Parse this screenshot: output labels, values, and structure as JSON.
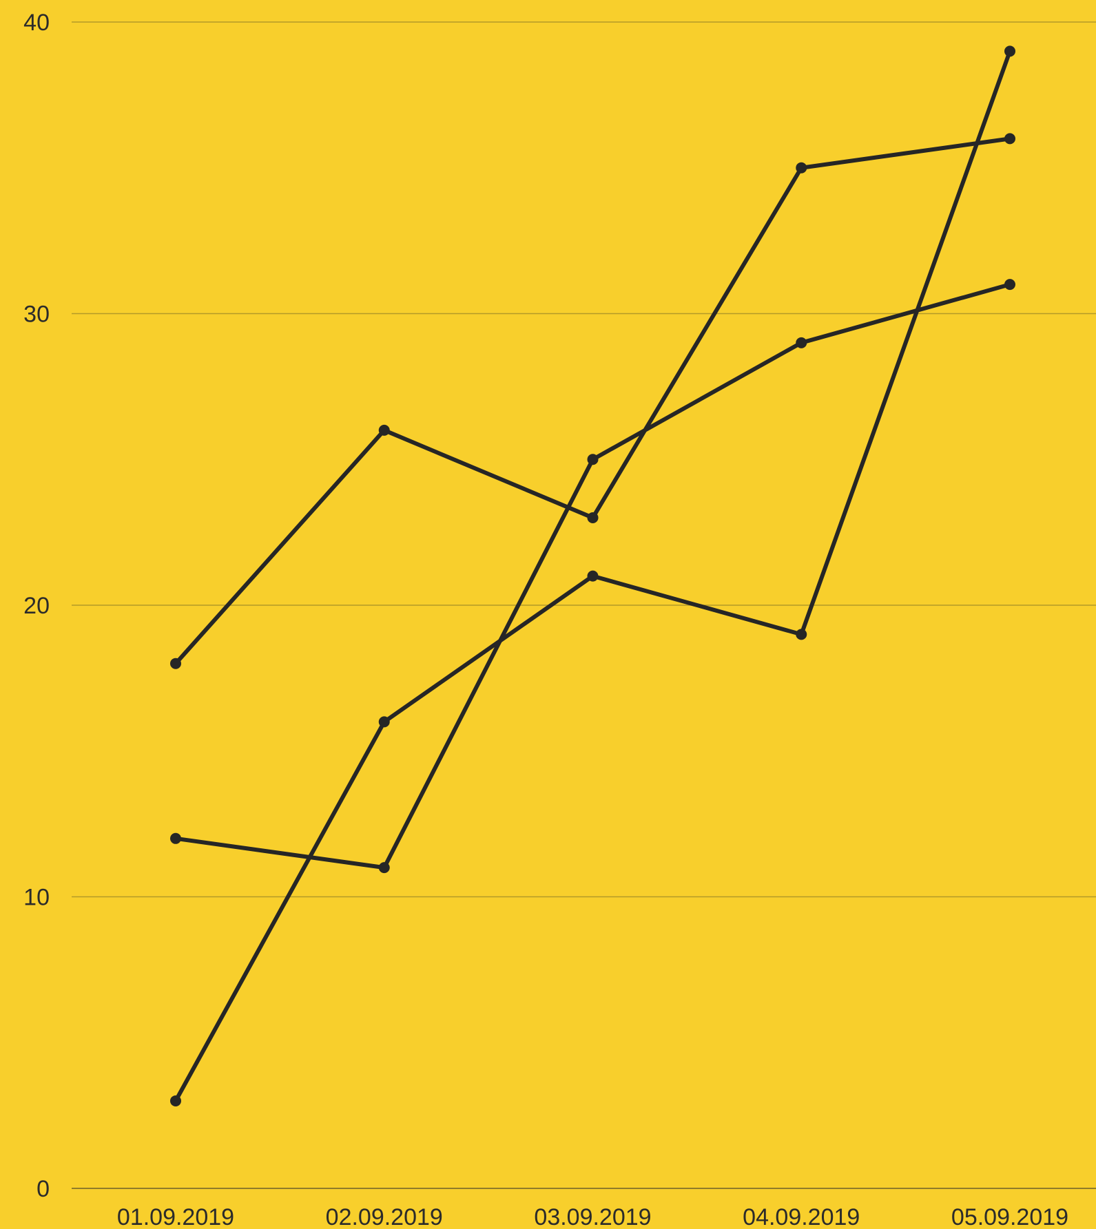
{
  "chart_data": {
    "type": "line",
    "title": "",
    "xlabel": "",
    "ylabel": "",
    "categories": [
      "01.09.2019",
      "02.09.2019",
      "03.09.2019",
      "04.09.2019",
      "05.09.2019"
    ],
    "ylim": [
      0,
      40
    ],
    "yticks": [
      "0",
      "10",
      "20",
      "30",
      "40"
    ],
    "grid": true,
    "legend": "none",
    "colors": {
      "background": "#F8CF2C",
      "line": "#262626",
      "grid": "#B39A28"
    },
    "series": [
      {
        "values": [
          18,
          26,
          23,
          35,
          36
        ]
      },
      {
        "values": [
          12,
          11,
          25,
          29,
          31
        ]
      },
      {
        "values": [
          3,
          16,
          21,
          19,
          39
        ]
      }
    ]
  }
}
